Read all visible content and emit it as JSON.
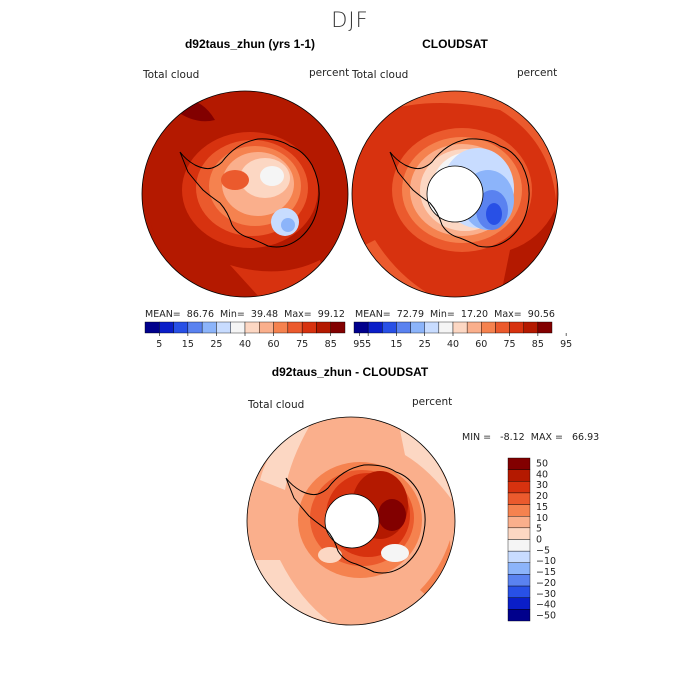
{
  "season": "DJF",
  "panels": {
    "model": {
      "title": "d92taus_zhun (yrs 1-1)",
      "variable": "Total cloud",
      "units": "percent",
      "stats": "MEAN=  86.76  Min=  39.48  Max=  99.12"
    },
    "obs": {
      "title": "CLOUDSAT",
      "variable": "Total cloud",
      "units": "percent",
      "stats": "MEAN=  72.79  Min=  17.20  Max=  90.56"
    },
    "diff": {
      "title": "d92taus_zhun - CLOUDSAT",
      "variable": "Total cloud",
      "units": "percent",
      "stats": "MIN =   -8.12  MAX =   66.93"
    }
  },
  "colorbars": {
    "field": {
      "labels": [
        "5",
        "15",
        "25",
        "40",
        "60",
        "75",
        "85",
        "95"
      ],
      "colors": [
        "#00008c",
        "#0a1ec8",
        "#2850e6",
        "#5a82f0",
        "#8cb4fa",
        "#c8dcff",
        "#f5f5f5",
        "#fcd7c3",
        "#faaf8c",
        "#f5824f",
        "#eb5a2d",
        "#d7320f",
        "#b41900",
        "#820000"
      ]
    },
    "diff": {
      "labels": [
        "50",
        "40",
        "30",
        "20",
        "15",
        "10",
        "5",
        "0",
        "−5",
        "−10",
        "−15",
        "−20",
        "−30",
        "−40",
        "−50"
      ],
      "colors": [
        "#820000",
        "#b41900",
        "#d7320f",
        "#eb5a2d",
        "#f5824f",
        "#faaf8c",
        "#fcd7c3",
        "#f5f5f5",
        "#c8dcff",
        "#8cb4fa",
        "#5a82f0",
        "#2850e6",
        "#0a1ec8",
        "#00008c"
      ]
    }
  }
}
